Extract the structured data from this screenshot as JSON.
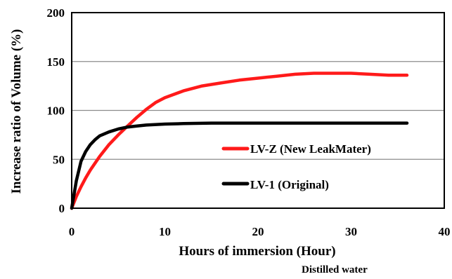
{
  "chart_data": {
    "type": "line",
    "title": "",
    "xlabel": "Hours of immersion (Hour)",
    "ylabel": "Increase ratio of Volume (%)",
    "note": "Distilled water",
    "xlim": [
      0,
      40
    ],
    "ylim": [
      0,
      200
    ],
    "xticks": [
      "0",
      "10",
      "20",
      "30",
      "40"
    ],
    "yticks": [
      "0",
      "50",
      "100",
      "150",
      "200"
    ],
    "grid": "horizontal",
    "legend_placement": "inside, lower right",
    "series": [
      {
        "name": "LV-Z (New LeakMater)",
        "color": "#ff1a1a",
        "x": [
          0,
          0.5,
          1,
          1.5,
          2,
          3,
          4,
          5,
          6,
          7,
          8,
          9,
          10,
          12,
          14,
          16,
          18,
          20,
          22,
          24,
          26,
          28,
          30,
          32,
          34,
          36
        ],
        "y": [
          0,
          12,
          22,
          31,
          39,
          53,
          65,
          75,
          84,
          93,
          101,
          108,
          113,
          120,
          125,
          128,
          131,
          133,
          135,
          137,
          138,
          138,
          138,
          137,
          136,
          136
        ]
      },
      {
        "name": "LV-1 (Original)",
        "color": "#000000",
        "x": [
          0,
          0.5,
          1,
          1.5,
          2,
          2.5,
          3,
          4,
          5,
          6,
          7,
          8,
          10,
          12,
          15,
          20,
          25,
          30,
          36
        ],
        "y": [
          0,
          28,
          48,
          58,
          65,
          70,
          74,
          78,
          81,
          83,
          84,
          85,
          86,
          86.5,
          87,
          87,
          87,
          87,
          87
        ]
      }
    ]
  }
}
